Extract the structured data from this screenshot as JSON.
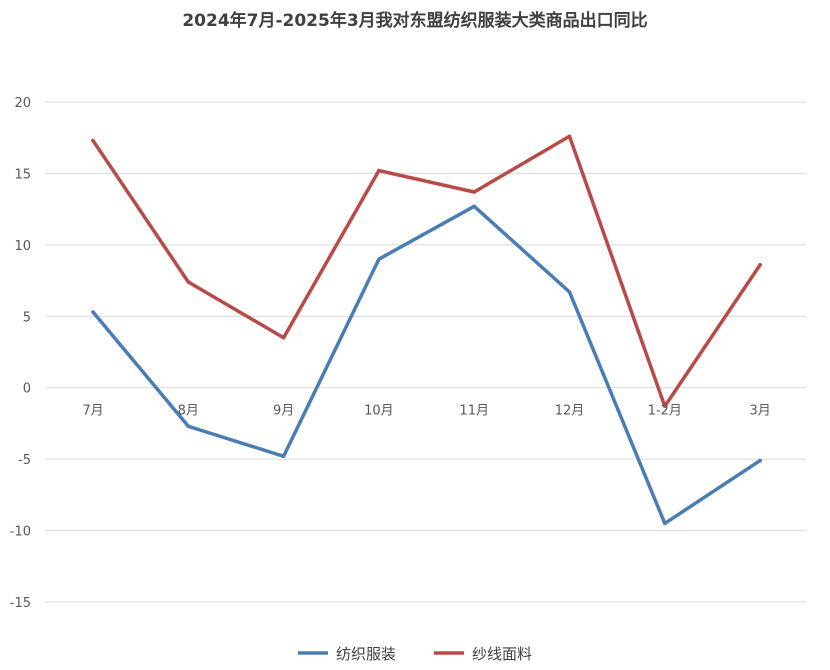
{
  "chart_data": {
    "type": "line",
    "title": "2024年7月-2025年3月我对东盟纺织服装大类商品出口同比",
    "categories": [
      "7月",
      "8月",
      "9月",
      "10月",
      "11月",
      "12月",
      "1-2月",
      "3月"
    ],
    "ylim": [
      -15,
      20
    ],
    "yticks": [
      20,
      15,
      10,
      5,
      0,
      -5,
      -10,
      -15
    ],
    "grid": true,
    "legend": "bottom",
    "series": [
      {
        "name": "纺织服装",
        "color": "#4a7db4",
        "values": [
          5.3,
          -2.7,
          -4.8,
          9.0,
          12.7,
          6.7,
          -9.5,
          -5.1
        ]
      },
      {
        "name": "纱线面料",
        "color": "#b84a48",
        "values": [
          17.3,
          7.4,
          3.5,
          15.2,
          13.7,
          17.6,
          -1.3,
          8.6
        ]
      }
    ]
  }
}
